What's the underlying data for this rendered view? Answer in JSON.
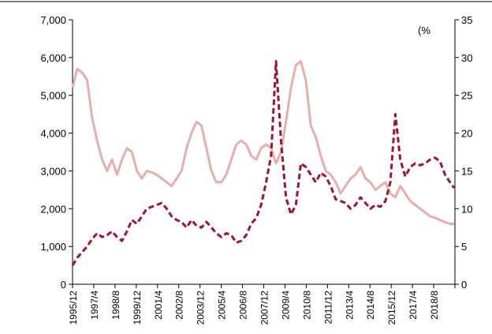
{
  "chart_data": {
    "type": "line",
    "title": "",
    "unit_note": "(%",
    "x_tick_labels": [
      "1995/12",
      "1997/4",
      "1998/8",
      "1999/12",
      "2001/4",
      "2002/8",
      "2003/12",
      "2005/4",
      "2006/8",
      "2007/12",
      "2009/4",
      "2010/8",
      "2011/12",
      "2013/4",
      "2014/8",
      "2015/12",
      "2017/4",
      "2018/8"
    ],
    "left_axis": {
      "ylim": [
        0,
        7000
      ],
      "ticks": [
        "0",
        "1,000",
        "2,000",
        "3,000",
        "4,000",
        "5,000",
        "6,000",
        "7,000"
      ]
    },
    "right_axis": {
      "ylim": [
        0,
        35
      ],
      "ticks": [
        "0",
        "5",
        "10",
        "15",
        "20",
        "25",
        "30",
        "35"
      ]
    },
    "x_range": [
      1995.917,
      2019.0
    ],
    "legend": "none",
    "grid": false,
    "series": [
      {
        "axis": "right",
        "style": "solid",
        "color": "#e8aeac",
        "x": [
          1995.92,
          1996.2,
          1996.5,
          1996.8,
          1997.1,
          1997.4,
          1997.7,
          1998.0,
          1998.3,
          1998.6,
          1998.9,
          1999.2,
          1999.5,
          1999.8,
          2000.1,
          2000.4,
          2000.7,
          2001.0,
          2001.3,
          2001.6,
          2001.9,
          2002.2,
          2002.5,
          2002.8,
          2003.1,
          2003.4,
          2003.7,
          2004.0,
          2004.3,
          2004.6,
          2004.9,
          2005.2,
          2005.5,
          2005.8,
          2006.1,
          2006.4,
          2006.7,
          2007.0,
          2007.3,
          2007.6,
          2007.9,
          2008.2,
          2008.5,
          2008.8,
          2009.1,
          2009.4,
          2009.7,
          2010.0,
          2010.3,
          2010.6,
          2010.9,
          2011.2,
          2011.5,
          2011.8,
          2012.1,
          2012.4,
          2012.7,
          2013.0,
          2013.3,
          2013.6,
          2013.9,
          2014.2,
          2014.5,
          2014.8,
          2015.1,
          2015.4,
          2015.7,
          2016.0,
          2016.3,
          2016.6,
          2016.9,
          2017.2,
          2017.5,
          2017.8,
          2018.1,
          2018.4,
          2018.7,
          2018.95
        ],
        "values": [
          26.0,
          28.5,
          28.0,
          27.0,
          22.0,
          19.0,
          16.5,
          15.0,
          16.5,
          14.5,
          16.5,
          18.0,
          17.5,
          15.0,
          14.0,
          15.0,
          14.8,
          14.5,
          14.0,
          13.5,
          13.0,
          14.0,
          15.0,
          18.0,
          20.0,
          21.5,
          21.0,
          18.0,
          15.0,
          13.5,
          13.5,
          14.5,
          16.5,
          18.5,
          19.0,
          18.5,
          17.0,
          16.5,
          18.0,
          18.5,
          18.0,
          16.0,
          17.5,
          21.5,
          26.0,
          29.0,
          29.5,
          27.0,
          21.0,
          19.5,
          17.0,
          15.0,
          14.5,
          13.5,
          12.0,
          13.0,
          14.0,
          14.5,
          15.5,
          14.0,
          13.5,
          12.5,
          13.0,
          13.5,
          12.0,
          11.5,
          13.0,
          12.0,
          11.0,
          10.5,
          10.0,
          9.5,
          9.0,
          8.8,
          8.5,
          8.2,
          8.0,
          8.0
        ]
      },
      {
        "axis": "left",
        "style": "dashed",
        "color": "#a3122e",
        "x": [
          1995.92,
          1996.2,
          1996.5,
          1996.8,
          1997.1,
          1997.4,
          1997.7,
          1998.0,
          1998.3,
          1998.6,
          1998.9,
          1999.2,
          1999.5,
          1999.8,
          2000.1,
          2000.4,
          2000.7,
          2001.0,
          2001.3,
          2001.6,
          2001.9,
          2002.2,
          2002.5,
          2002.8,
          2003.1,
          2003.4,
          2003.7,
          2004.0,
          2004.3,
          2004.6,
          2004.9,
          2005.2,
          2005.5,
          2005.8,
          2006.1,
          2006.4,
          2006.7,
          2007.0,
          2007.3,
          2007.6,
          2007.9,
          2008.2,
          2008.5,
          2008.8,
          2009.1,
          2009.4,
          2009.7,
          2010.0,
          2010.3,
          2010.6,
          2010.9,
          2011.2,
          2011.5,
          2011.8,
          2012.1,
          2012.4,
          2012.7,
          2013.0,
          2013.3,
          2013.6,
          2013.9,
          2014.2,
          2014.5,
          2014.8,
          2015.1,
          2015.4,
          2015.7,
          2016.0,
          2016.3,
          2016.6,
          2016.9,
          2017.2,
          2017.5,
          2017.8,
          2018.1,
          2018.4,
          2018.7,
          2018.95
        ],
        "values": [
          500,
          700,
          850,
          1000,
          1200,
          1350,
          1250,
          1300,
          1400,
          1250,
          1150,
          1400,
          1700,
          1600,
          1800,
          2000,
          2050,
          2100,
          2150,
          2000,
          1800,
          1700,
          1650,
          1500,
          1700,
          1550,
          1500,
          1650,
          1500,
          1350,
          1250,
          1350,
          1300,
          1100,
          1150,
          1300,
          1600,
          1750,
          2100,
          2700,
          3400,
          5900,
          3800,
          2300,
          1850,
          2100,
          3200,
          3100,
          2900,
          2700,
          2950,
          2850,
          2600,
          2250,
          2200,
          2150,
          2000,
          2100,
          2300,
          2150,
          2000,
          2100,
          2050,
          2200,
          2700,
          4500,
          3300,
          2850,
          3100,
          3200,
          3150,
          3200,
          3300,
          3350,
          3250,
          2900,
          2700,
          2550
        ]
      }
    ]
  }
}
